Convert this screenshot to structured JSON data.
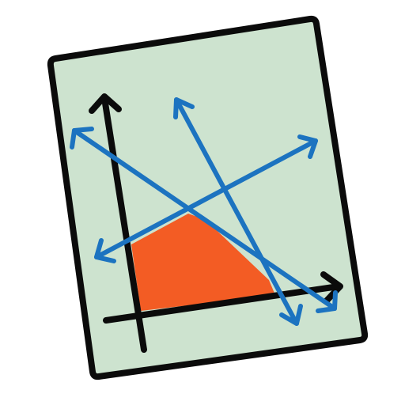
{
  "icon": {
    "name": "linear-programming-graph-icon",
    "colors": {
      "background": "#ffffff",
      "paper_fill": "#cde3cf",
      "outline": "#0b0b0b",
      "axes": "#0b0b0b",
      "constraint_lines": "#1c73c0",
      "feasible_region": "#f35c24"
    }
  }
}
